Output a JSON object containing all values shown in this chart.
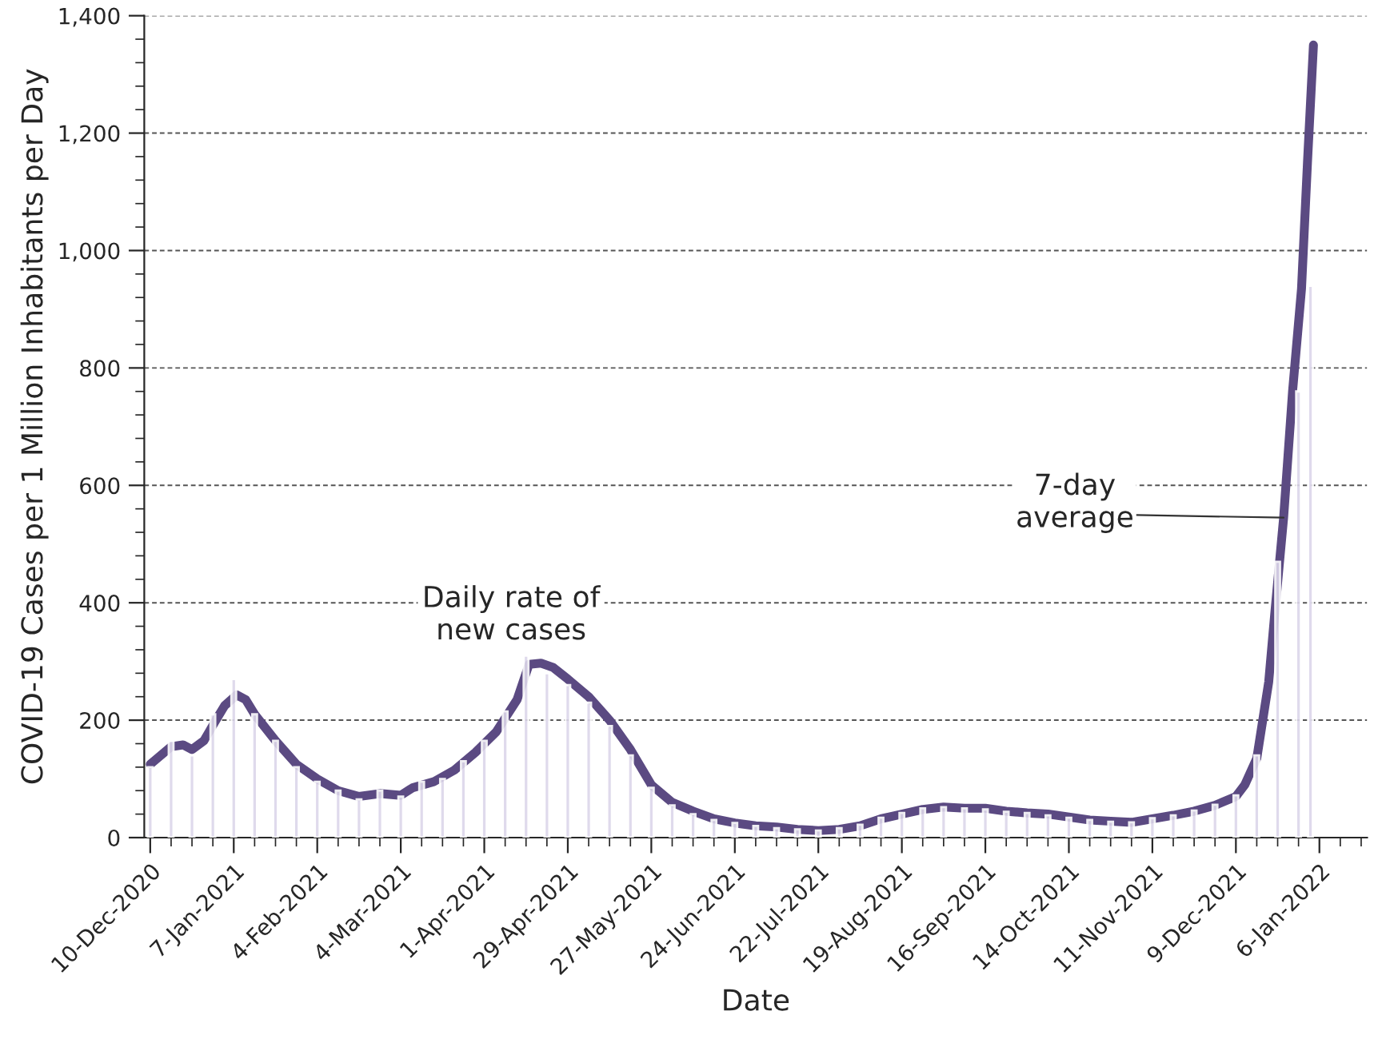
{
  "chart_data": {
    "type": "bar",
    "xlabel": "Date",
    "ylabel": "COVID-19 Cases per 1 Million Inhabitants per Day",
    "xlim": [
      "2020-12-08",
      "2022-01-22"
    ],
    "xticks": [
      {
        "value": "2020-12-10",
        "label": "10-Dec-2020"
      },
      {
        "value": "2021-01-07",
        "label": "7-Jan-2021"
      },
      {
        "value": "2021-02-04",
        "label": "4-Feb-2021"
      },
      {
        "value": "2021-03-04",
        "label": "4-Mar-2021"
      },
      {
        "value": "2021-04-01",
        "label": "1-Apr-2021"
      },
      {
        "value": "2021-04-29",
        "label": "29-Apr-2021"
      },
      {
        "value": "2021-05-27",
        "label": "27-May-2021"
      },
      {
        "value": "2021-06-24",
        "label": "24-Jun-2021"
      },
      {
        "value": "2021-07-22",
        "label": "22-Jul-2021"
      },
      {
        "value": "2021-08-19",
        "label": "19-Aug-2021"
      },
      {
        "value": "2021-09-16",
        "label": "16-Sep-2021"
      },
      {
        "value": "2021-10-14",
        "label": "14-Oct-2021"
      },
      {
        "value": "2021-11-11",
        "label": "11-Nov-2021"
      },
      {
        "value": "2021-12-09",
        "label": "9-Dec-2021"
      },
      {
        "value": "2022-01-06",
        "label": "6-Jan-2022"
      }
    ],
    "ylim": [
      0,
      1400
    ],
    "yticks": [
      0,
      {
        "value": 200,
        "label": "200"
      },
      {
        "value": 400,
        "label": "400"
      },
      {
        "value": 600,
        "label": "600"
      },
      {
        "value": 800,
        "label": "800"
      },
      {
        "value": 1000,
        "label": "1,000"
      },
      {
        "value": 1200,
        "label": "1,200"
      },
      {
        "value": 1400,
        "label": "1,400"
      }
    ],
    "grid": "y",
    "series": [
      {
        "color": "#dcd6ea",
        "x": [
          "2020-12-10",
          "2020-12-17",
          "2020-12-24",
          "2020-12-31",
          "2021-01-07",
          "2021-01-14",
          "2021-01-21",
          "2021-01-28",
          "2021-02-04",
          "2021-02-11",
          "2021-02-18",
          "2021-02-25",
          "2021-03-04",
          "2021-03-11",
          "2021-03-18",
          "2021-03-25",
          "2021-04-01",
          "2021-04-08",
          "2021-04-15",
          "2021-04-22",
          "2021-04-29",
          "2021-05-06",
          "2021-05-13",
          "2021-05-20",
          "2021-05-27",
          "2021-06-03",
          "2021-06-10",
          "2021-06-17",
          "2021-06-24",
          "2021-07-01",
          "2021-07-08",
          "2021-07-15",
          "2021-07-22",
          "2021-07-29",
          "2021-08-05",
          "2021-08-12",
          "2021-08-19",
          "2021-08-26",
          "2021-09-02",
          "2021-09-09",
          "2021-09-16",
          "2021-09-23",
          "2021-09-30",
          "2021-10-07",
          "2021-10-14",
          "2021-10-21",
          "2021-10-28",
          "2021-11-04",
          "2021-11-11",
          "2021-11-18",
          "2021-11-25",
          "2021-12-02",
          "2021-12-09",
          "2021-12-16",
          "2021-12-23",
          "2021-12-30",
          "2022-01-03"
        ],
        "values": [
          120,
          165,
          140,
          210,
          270,
          210,
          165,
          120,
          95,
          80,
          65,
          80,
          70,
          95,
          100,
          130,
          165,
          215,
          310,
          280,
          260,
          230,
          190,
          140,
          85,
          55,
          40,
          30,
          25,
          20,
          16,
          14,
          12,
          16,
          22,
          34,
          42,
          50,
          52,
          50,
          48,
          44,
          42,
          38,
          34,
          30,
          27,
          26,
          33,
          38,
          46,
          56,
          72,
          140,
          470,
          760,
          940
        ]
      },
      {
        "type": "line",
        "color": "#5b4a82",
        "x": [
          "2020-12-10",
          "2020-12-17",
          "2020-12-21",
          "2020-12-24",
          "2020-12-28",
          "2021-01-01",
          "2021-01-04",
          "2021-01-08",
          "2021-01-11",
          "2021-01-14",
          "2021-01-21",
          "2021-01-28",
          "2021-02-04",
          "2021-02-11",
          "2021-02-18",
          "2021-02-25",
          "2021-03-04",
          "2021-03-08",
          "2021-03-15",
          "2021-03-22",
          "2021-03-29",
          "2021-04-05",
          "2021-04-12",
          "2021-04-16",
          "2021-04-20",
          "2021-04-24",
          "2021-04-29",
          "2021-05-06",
          "2021-05-13",
          "2021-05-20",
          "2021-05-27",
          "2021-06-03",
          "2021-06-10",
          "2021-06-17",
          "2021-06-24",
          "2021-07-01",
          "2021-07-08",
          "2021-07-15",
          "2021-07-22",
          "2021-07-29",
          "2021-08-05",
          "2021-08-12",
          "2021-08-19",
          "2021-08-26",
          "2021-09-02",
          "2021-09-09",
          "2021-09-16",
          "2021-09-23",
          "2021-09-30",
          "2021-10-07",
          "2021-10-14",
          "2021-10-21",
          "2021-10-28",
          "2021-11-04",
          "2021-11-11",
          "2021-11-18",
          "2021-11-25",
          "2021-12-02",
          "2021-12-09",
          "2021-12-12",
          "2021-12-16",
          "2021-12-18",
          "2021-12-20",
          "2021-12-22",
          "2021-12-25",
          "2021-12-28",
          "2021-12-31",
          "2022-01-02",
          "2022-01-04"
        ],
        "values": [
          125,
          155,
          158,
          150,
          165,
          200,
          225,
          243,
          235,
          210,
          165,
          125,
          100,
          80,
          70,
          75,
          72,
          85,
          95,
          115,
          145,
          180,
          235,
          295,
          297,
          290,
          270,
          240,
          200,
          150,
          90,
          60,
          45,
          32,
          25,
          20,
          18,
          14,
          12,
          14,
          20,
          32,
          40,
          48,
          52,
          50,
          50,
          45,
          42,
          40,
          35,
          30,
          28,
          26,
          32,
          38,
          45,
          55,
          70,
          90,
          135,
          200,
          265,
          380,
          545,
          760,
          935,
          1150,
          1350
        ]
      }
    ],
    "annotations": [
      "Daily rate of\nnew cases",
      {
        "text": "7-day\naverage",
        "x": "2021-12-25",
        "y": 545
      }
    ]
  }
}
